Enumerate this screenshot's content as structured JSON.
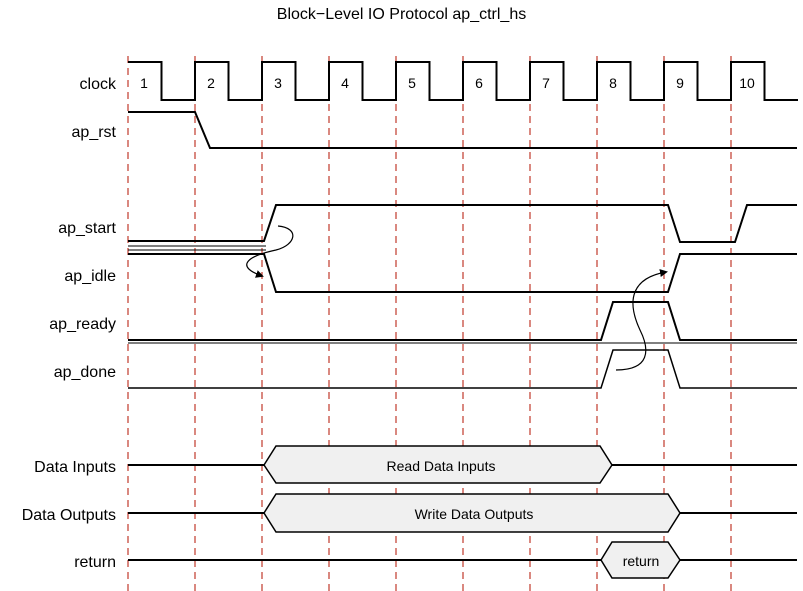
{
  "title": "Block−Level IO Protocol ap_ctrl_hs",
  "cycles": [
    "1",
    "2",
    "3",
    "4",
    "5",
    "6",
    "7",
    "8",
    "9",
    "10"
  ],
  "signals": {
    "clock": "clock",
    "ap_rst": "ap_rst",
    "ap_start": "ap_start",
    "ap_idle": "ap_idle",
    "ap_ready": "ap_ready",
    "ap_done": "ap_done",
    "data_inputs": "Data Inputs",
    "data_outputs": "Data Outputs",
    "return": "return"
  },
  "buses": {
    "read_data_inputs": "Read Data Inputs",
    "write_data_outputs": "Write Data Outputs",
    "return_value": "return"
  },
  "colors": {
    "cycle_marker": "#c0392b",
    "bus_fill": "#f0f0f0",
    "line": "#000000"
  }
}
